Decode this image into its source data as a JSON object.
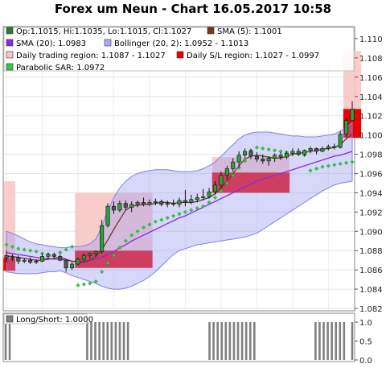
{
  "title": "Forex um Neun - Chart 16.05.2017 10:58",
  "legend": [
    {
      "label": "Op:1.1015, Hi:1.1035, Lo:1.1015, Cl:1.1027",
      "color": "#2e7d32"
    },
    {
      "label": "SMA (5): 1.1001",
      "color": "#6d3b1f"
    },
    {
      "label": "SMA (20): 1.0983",
      "color": "#8a2be2"
    },
    {
      "label": "Bollinger (20, 2): 1.0952 - 1.1013",
      "color": "#aaaaf5"
    },
    {
      "label": "Daily trading region: 1.1087 - 1.1027",
      "color": "#f7c6c6"
    },
    {
      "label": "Daily S/L region: 1.1027 - 1.0997",
      "color": "#ee0000"
    },
    {
      "label": "Parabolic SAR: 1.0972",
      "color": "#2ecc40"
    }
  ],
  "sub_legend": {
    "label": "Long/Short: 1.0000",
    "color": "#808080"
  },
  "chart_data": {
    "type": "candlestick",
    "ylim": [
      1.082,
      1.111
    ],
    "y_ticks": [
      "1.110",
      "1.108",
      "1.106",
      "1.104",
      "1.102",
      "1.100",
      "1.098",
      "1.096",
      "1.094",
      "1.092",
      "1.090",
      "1.088",
      "1.086",
      "1.084",
      "1.082"
    ],
    "candles": [
      {
        "o": 1.0875,
        "h": 1.088,
        "l": 1.0868,
        "c": 1.0872
      },
      {
        "o": 1.0872,
        "h": 1.0876,
        "l": 1.0869,
        "c": 1.0873
      },
      {
        "o": 1.0873,
        "h": 1.0875,
        "l": 1.0866,
        "c": 1.0869
      },
      {
        "o": 1.0869,
        "h": 1.0872,
        "l": 1.0867,
        "c": 1.087
      },
      {
        "o": 1.087,
        "h": 1.0873,
        "l": 1.0866,
        "c": 1.0868
      },
      {
        "o": 1.0868,
        "h": 1.0871,
        "l": 1.0866,
        "c": 1.0869
      },
      {
        "o": 1.0869,
        "h": 1.0877,
        "l": 1.0868,
        "c": 1.0874
      },
      {
        "o": 1.0874,
        "h": 1.0878,
        "l": 1.0871,
        "c": 1.0876
      },
      {
        "o": 1.0876,
        "h": 1.0878,
        "l": 1.0872,
        "c": 1.0874
      },
      {
        "o": 1.0874,
        "h": 1.0876,
        "l": 1.0869,
        "c": 1.087
      },
      {
        "o": 1.087,
        "h": 1.0871,
        "l": 1.0858,
        "c": 1.0862
      },
      {
        "o": 1.0862,
        "h": 1.0868,
        "l": 1.086,
        "c": 1.0866
      },
      {
        "o": 1.0866,
        "h": 1.0873,
        "l": 1.0865,
        "c": 1.0871
      },
      {
        "o": 1.0871,
        "h": 1.0877,
        "l": 1.0869,
        "c": 1.0875
      },
      {
        "o": 1.0875,
        "h": 1.0878,
        "l": 1.0872,
        "c": 1.0877
      },
      {
        "o": 1.0877,
        "h": 1.088,
        "l": 1.0874,
        "c": 1.0879
      },
      {
        "o": 1.0879,
        "h": 1.0912,
        "l": 1.0877,
        "c": 1.0906
      },
      {
        "o": 1.0906,
        "h": 1.0929,
        "l": 1.0904,
        "c": 1.0926
      },
      {
        "o": 1.0926,
        "h": 1.0931,
        "l": 1.0918,
        "c": 1.0922
      },
      {
        "o": 1.0922,
        "h": 1.0932,
        "l": 1.092,
        "c": 1.0929
      },
      {
        "o": 1.0929,
        "h": 1.0932,
        "l": 1.0922,
        "c": 1.0925
      },
      {
        "o": 1.0925,
        "h": 1.0931,
        "l": 1.092,
        "c": 1.0928
      },
      {
        "o": 1.0928,
        "h": 1.0932,
        "l": 1.0925,
        "c": 1.093
      },
      {
        "o": 1.093,
        "h": 1.0935,
        "l": 1.0926,
        "c": 1.0928
      },
      {
        "o": 1.0928,
        "h": 1.0933,
        "l": 1.0926,
        "c": 1.093
      },
      {
        "o": 1.093,
        "h": 1.0934,
        "l": 1.0927,
        "c": 1.0931
      },
      {
        "o": 1.0931,
        "h": 1.0933,
        "l": 1.0926,
        "c": 1.0928
      },
      {
        "o": 1.0928,
        "h": 1.0932,
        "l": 1.0925,
        "c": 1.0929
      },
      {
        "o": 1.0929,
        "h": 1.0933,
        "l": 1.0926,
        "c": 1.0928
      },
      {
        "o": 1.0928,
        "h": 1.0935,
        "l": 1.0925,
        "c": 1.0932
      },
      {
        "o": 1.0932,
        "h": 1.0943,
        "l": 1.0926,
        "c": 1.093
      },
      {
        "o": 1.093,
        "h": 1.0938,
        "l": 1.0928,
        "c": 1.0933
      },
      {
        "o": 1.0933,
        "h": 1.0939,
        "l": 1.093,
        "c": 1.0935
      },
      {
        "o": 1.0935,
        "h": 1.0944,
        "l": 1.0932,
        "c": 1.0936
      },
      {
        "o": 1.0936,
        "h": 1.0945,
        "l": 1.0934,
        "c": 1.0941
      },
      {
        "o": 1.0941,
        "h": 1.0952,
        "l": 1.0938,
        "c": 1.0948
      },
      {
        "o": 1.0948,
        "h": 1.0962,
        "l": 1.0944,
        "c": 1.0958
      },
      {
        "o": 1.0958,
        "h": 1.0968,
        "l": 1.0954,
        "c": 1.0965
      },
      {
        "o": 1.0965,
        "h": 1.0976,
        "l": 1.0962,
        "c": 1.0972
      },
      {
        "o": 1.0972,
        "h": 1.0983,
        "l": 1.0966,
        "c": 1.0979
      },
      {
        "o": 1.0979,
        "h": 1.0986,
        "l": 1.0976,
        "c": 1.0983
      },
      {
        "o": 1.0983,
        "h": 1.0985,
        "l": 1.0975,
        "c": 1.0978
      },
      {
        "o": 1.0978,
        "h": 1.0982,
        "l": 1.0972,
        "c": 1.0975
      },
      {
        "o": 1.0975,
        "h": 1.098,
        "l": 1.097,
        "c": 1.0973
      },
      {
        "o": 1.0973,
        "h": 1.0978,
        "l": 1.0968,
        "c": 1.0976
      },
      {
        "o": 1.0976,
        "h": 1.0981,
        "l": 1.0972,
        "c": 1.0979
      },
      {
        "o": 1.0979,
        "h": 1.0982,
        "l": 1.0974,
        "c": 1.0977
      },
      {
        "o": 1.0977,
        "h": 1.0983,
        "l": 1.0975,
        "c": 1.0981
      },
      {
        "o": 1.0981,
        "h": 1.0986,
        "l": 1.0978,
        "c": 1.0983
      },
      {
        "o": 1.0983,
        "h": 1.0986,
        "l": 1.0979,
        "c": 1.098
      },
      {
        "o": 1.098,
        "h": 1.0985,
        "l": 1.0978,
        "c": 1.0984
      },
      {
        "o": 1.0984,
        "h": 1.0988,
        "l": 1.0981,
        "c": 1.0986
      },
      {
        "o": 1.0986,
        "h": 1.0987,
        "l": 1.098,
        "c": 1.0983
      },
      {
        "o": 1.0983,
        "h": 1.0988,
        "l": 1.0982,
        "c": 1.0986
      },
      {
        "o": 1.0986,
        "h": 1.099,
        "l": 1.0984,
        "c": 1.0988
      },
      {
        "o": 1.0988,
        "h": 1.0991,
        "l": 1.0985,
        "c": 1.0987
      },
      {
        "o": 1.0987,
        "h": 1.1004,
        "l": 1.0986,
        "c": 1.1001
      },
      {
        "o": 1.1001,
        "h": 1.1018,
        "l": 1.0998,
        "c": 1.1015
      },
      {
        "o": 1.1015,
        "h": 1.1035,
        "l": 1.1015,
        "c": 1.1027
      }
    ],
    "sma5": [
      1.0874,
      1.0874,
      1.0873,
      1.0872,
      1.0871,
      1.087,
      1.087,
      1.0871,
      1.0872,
      1.0873,
      1.0871,
      1.0869,
      1.0868,
      1.0868,
      1.087,
      1.0874,
      1.0881,
      1.0891,
      1.0902,
      1.0912,
      1.0922,
      1.0926,
      1.0927,
      1.0928,
      1.0928,
      1.0929,
      1.093,
      1.093,
      1.0929,
      1.093,
      1.093,
      1.093,
      1.0931,
      1.0933,
      1.0935,
      1.0939,
      1.0945,
      1.0952,
      1.096,
      1.0968,
      1.0975,
      1.0978,
      1.0979,
      1.0978,
      1.0977,
      1.0976,
      1.0976,
      1.0978,
      1.098,
      1.0981,
      1.0982,
      1.0983,
      1.0984,
      1.0985,
      1.0986,
      1.0987,
      1.099,
      1.0996,
      1.1001
    ],
    "sma20": [
      1.0878,
      1.0877,
      1.0876,
      1.0875,
      1.0874,
      1.0873,
      1.0872,
      1.0872,
      1.0871,
      1.0871,
      1.087,
      1.0869,
      1.0869,
      1.0869,
      1.087,
      1.0871,
      1.0873,
      1.0876,
      1.0879,
      1.0883,
      1.0886,
      1.089,
      1.0893,
      1.0896,
      1.0899,
      1.0902,
      1.0905,
      1.0908,
      1.0911,
      1.0914,
      1.0916,
      1.0919,
      1.0922,
      1.0925,
      1.0928,
      1.0931,
      1.0934,
      1.0937,
      1.094,
      1.0943,
      1.0946,
      1.0949,
      1.0952,
      1.0954,
      1.0956,
      1.0958,
      1.096,
      1.0962,
      1.0964,
      1.0966,
      1.0968,
      1.097,
      1.0972,
      1.0974,
      1.0976,
      1.0978,
      1.0979,
      1.0981,
      1.0983
    ],
    "bollinger_upper": [
      1.09,
      1.0898,
      1.0895,
      1.0892,
      1.0889,
      1.0887,
      1.0886,
      1.0885,
      1.0884,
      1.0883,
      1.0883,
      1.0884,
      1.0884,
      1.0885,
      1.0887,
      1.0892,
      1.0905,
      1.0922,
      1.0935,
      1.0945,
      1.0952,
      1.0957,
      1.096,
      1.0962,
      1.0963,
      1.0964,
      1.0964,
      1.0964,
      1.0963,
      1.0962,
      1.0962,
      1.0962,
      1.0963,
      1.0965,
      1.0968,
      1.0972,
      1.0978,
      1.0984,
      1.099,
      1.0996,
      1.1,
      1.1002,
      1.1003,
      1.1003,
      1.1003,
      1.1002,
      1.1001,
      1.1,
      1.0999,
      1.0999,
      1.0998,
      1.0998,
      1.0998,
      1.0999,
      1.1,
      1.1001,
      1.1004,
      1.1008,
      1.1013
    ],
    "bollinger_lower": [
      1.0858,
      1.0857,
      1.0856,
      1.0856,
      1.0856,
      1.0856,
      1.0857,
      1.0858,
      1.0858,
      1.0859,
      1.0857,
      1.0854,
      1.0852,
      1.085,
      1.0848,
      1.0846,
      1.0843,
      1.0841,
      1.084,
      1.084,
      1.0841,
      1.0843,
      1.0846,
      1.0849,
      1.0853,
      1.0858,
      1.0864,
      1.087,
      1.0876,
      1.088,
      1.0882,
      1.0884,
      1.0886,
      1.0887,
      1.0888,
      1.0889,
      1.089,
      1.0891,
      1.0892,
      1.0893,
      1.0894,
      1.0896,
      1.0898,
      1.0902,
      1.0906,
      1.091,
      1.0914,
      1.0918,
      1.0922,
      1.0926,
      1.093,
      1.0934,
      1.0938,
      1.0942,
      1.0945,
      1.0948,
      1.095,
      1.0951,
      1.0952
    ],
    "parabolic_sar": [
      1.0886,
      1.0884,
      1.0882,
      1.0881,
      1.088,
      1.0879,
      1.0877,
      1.0876,
      1.0875,
      1.0878,
      1.0881,
      1.0884,
      1.0844,
      1.0845,
      1.0846,
      1.0848,
      1.0858,
      1.0867,
      1.0875,
      1.0883,
      1.089,
      1.0896,
      1.09,
      1.0904,
      1.0907,
      1.091,
      1.0912,
      1.0914,
      1.0916,
      1.0918,
      1.092,
      1.0922,
      1.0924,
      1.0926,
      1.093,
      1.0935,
      1.0942,
      1.095,
      1.0958,
      1.0966,
      1.0973,
      1.0984,
      1.0987,
      1.0986,
      1.0985,
      1.0984,
      1.0983,
      1.0982,
      1.0981,
      1.098,
      1.0979,
      1.0963,
      1.0965,
      1.0967,
      1.0968,
      1.0969,
      1.097,
      1.0971,
      1.0972
    ],
    "daily_regions": [
      {
        "from": 0,
        "to": 1,
        "trading": [
          1.0864,
          1.0952
        ],
        "sl": [
          1.0859,
          1.0872
        ]
      },
      {
        "from": 12,
        "to": 24,
        "trading": [
          1.088,
          1.094
        ],
        "sl": [
          1.0862,
          1.088
        ]
      },
      {
        "from": 35,
        "to": 47,
        "trading": [
          1.095,
          1.0977
        ],
        "sl": [
          1.094,
          1.0961
        ]
      },
      {
        "from": 57,
        "to": 59,
        "trading": [
          1.1027,
          1.1087
        ],
        "sl": [
          1.0997,
          1.1027
        ]
      }
    ],
    "long_short": {
      "ylim": [
        0.0,
        1.0
      ],
      "y_ticks": [
        "1.0",
        "0.5",
        "0.0"
      ],
      "values": [
        1,
        1,
        0,
        0,
        0,
        0,
        0,
        0,
        0,
        0,
        0,
        0,
        0,
        0,
        0,
        0,
        0,
        0,
        0,
        0,
        1,
        1,
        1,
        1,
        1,
        1,
        1,
        1,
        1,
        1,
        1,
        0,
        0,
        0,
        0,
        0,
        0,
        0,
        0,
        0,
        0,
        0,
        0,
        0,
        0,
        0,
        0,
        0,
        0,
        0,
        1,
        1,
        1,
        1,
        1,
        1,
        1,
        1,
        1,
        1,
        1,
        1,
        0,
        0,
        0,
        0,
        0,
        0,
        0,
        0,
        0,
        0,
        0,
        0,
        0,
        0,
        1,
        1,
        1,
        1,
        1,
        1,
        1,
        1,
        0,
        1
      ]
    }
  }
}
